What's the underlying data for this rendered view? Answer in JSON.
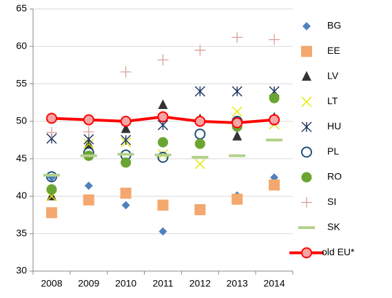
{
  "chart_data": {
    "type": "line",
    "categories": [
      "2008",
      "2009",
      "2010",
      "2011",
      "2012",
      "2013",
      "2014"
    ],
    "ylim": [
      30,
      65
    ],
    "yticks": [
      30,
      35,
      40,
      45,
      50,
      55,
      60,
      65
    ],
    "grid": true,
    "legend": "right",
    "series": [
      {
        "name": "BG",
        "color": "#4f81bd",
        "marker": "diamond",
        "line": false,
        "values": [
          42.5,
          41.4,
          38.8,
          35.3,
          38.0,
          40.1,
          42.5
        ]
      },
      {
        "name": "EE",
        "color": "#f4a86e",
        "marker": "square",
        "line": false,
        "values": [
          37.8,
          39.5,
          40.4,
          38.8,
          38.2,
          39.6,
          41.5
        ]
      },
      {
        "name": "LV",
        "color": "#333333",
        "marker": "triangle",
        "line": false,
        "values": [
          40.0,
          46.9,
          49.0,
          52.2,
          50.3,
          48.0,
          50.5
        ]
      },
      {
        "name": "LT",
        "color": "#e6e600",
        "marker": "x",
        "line": false,
        "values": [
          40.0,
          47.0,
          47.2,
          45.6,
          44.3,
          51.3,
          49.6
        ]
      },
      {
        "name": "HU",
        "color": "#1f3864",
        "marker": "star",
        "line": false,
        "values": [
          47.7,
          47.6,
          47.5,
          49.5,
          54.0,
          54.0,
          54.0
        ]
      },
      {
        "name": "PL",
        "color": "#1f4e79",
        "marker": "circle-open",
        "line": false,
        "values": [
          42.6,
          45.8,
          45.5,
          45.2,
          48.3,
          50.0,
          50.2
        ]
      },
      {
        "name": "RO",
        "color": "#6aa531",
        "marker": "circle",
        "line": false,
        "values": [
          40.9,
          45.4,
          44.5,
          47.2,
          47.0,
          49.3,
          53.1
        ]
      },
      {
        "name": "SI",
        "color": "#d99694",
        "marker": "plus",
        "line": false,
        "values": [
          48.5,
          48.6,
          56.6,
          58.2,
          59.5,
          61.2,
          60.9
        ]
      },
      {
        "name": "SK",
        "color": "#b3d08c",
        "marker": "dash",
        "line": false,
        "values": [
          42.8,
          45.4,
          45.6,
          45.5,
          45.2,
          45.4,
          47.5
        ]
      },
      {
        "name": "old EU*",
        "color": "#ff0000",
        "marker": "circle-line",
        "line": true,
        "values": [
          50.4,
          50.2,
          50.0,
          50.6,
          50.0,
          49.8,
          50.2
        ]
      }
    ]
  }
}
